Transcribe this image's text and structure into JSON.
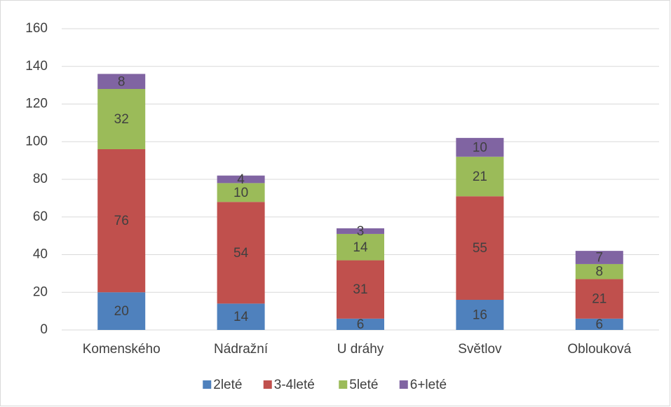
{
  "chart_data": {
    "type": "stacked_bar",
    "categories": [
      "Komenského",
      "Nádražní",
      "U dráhy",
      "Světlov",
      "Oblouková"
    ],
    "series": [
      {
        "name": "2leté",
        "color": "#4f81bd",
        "values": [
          20,
          14,
          6,
          16,
          6
        ]
      },
      {
        "name": "3-4leté",
        "color": "#c0504d",
        "values": [
          76,
          54,
          31,
          55,
          21
        ]
      },
      {
        "name": "5leté",
        "color": "#9bbb59",
        "values": [
          32,
          10,
          14,
          21,
          8
        ]
      },
      {
        "name": "6+leté",
        "color": "#8064a2",
        "values": [
          8,
          4,
          3,
          10,
          7
        ]
      }
    ],
    "ylim": [
      0,
      160
    ],
    "yticks": [
      0,
      20,
      40,
      60,
      80,
      100,
      120,
      140,
      160
    ],
    "grid": true,
    "legend": "bottom"
  }
}
